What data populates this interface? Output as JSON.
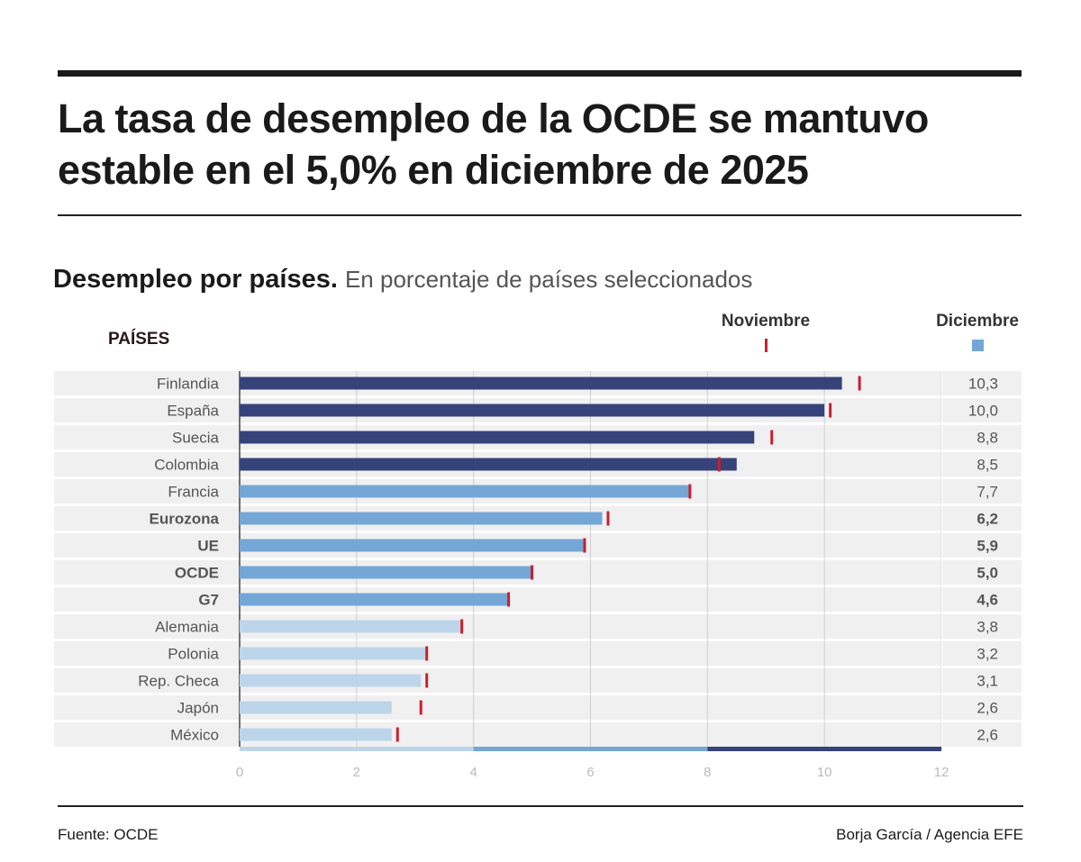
{
  "header": {
    "title": "La tasa de desempleo de la OCDE se mantuvo estable en el 5,0% en diciembre de 2025"
  },
  "chart_data": {
    "type": "bar",
    "title": "Desempleo por países.",
    "subtitle": "En porcentaje de países seleccionados",
    "category_header": "PAÍSES",
    "categories": [
      "Finlandia",
      "España",
      "Suecia",
      "Colombia",
      "Francia",
      "Eurozona",
      "UE",
      "OCDE",
      "G7",
      "Alemania",
      "Polonia",
      "Rep. Checa",
      "Japón",
      "México"
    ],
    "bold_categories": [
      "Eurozona",
      "UE",
      "OCDE",
      "G7"
    ],
    "series": [
      {
        "name": "Diciembre",
        "values": [
          10.3,
          10.0,
          8.8,
          8.5,
          7.7,
          6.2,
          5.9,
          5.0,
          4.6,
          3.8,
          3.2,
          3.1,
          2.6,
          2.6
        ]
      },
      {
        "name": "Noviembre",
        "values": [
          10.6,
          10.1,
          9.1,
          8.2,
          7.7,
          6.3,
          5.9,
          5.0,
          4.6,
          3.8,
          3.2,
          3.2,
          3.1,
          2.7
        ]
      }
    ],
    "value_labels": [
      "10,3",
      "10,0",
      "8,8",
      "8,5",
      "7,7",
      "6,2",
      "5,9",
      "5,0",
      "4,6",
      "3,8",
      "3,2",
      "3,1",
      "2,6",
      "2,6"
    ],
    "xlim": [
      0,
      12
    ],
    "xticks": [
      "0",
      "2",
      "4",
      "6",
      "8",
      "10",
      "12"
    ],
    "grid": true,
    "legend_placement": "top-right",
    "color_scale": [
      {
        "from": 0,
        "to": 4,
        "color": "#bdd5ea"
      },
      {
        "from": 4,
        "to": 8,
        "color": "#74a7d6"
      },
      {
        "from": 8,
        "to": 12,
        "color": "#36437a"
      }
    ],
    "november_marker_color": "#c8202f"
  },
  "footer": {
    "source": "Fuente: OCDE",
    "credit": "Borja García / Agencia EFE"
  }
}
